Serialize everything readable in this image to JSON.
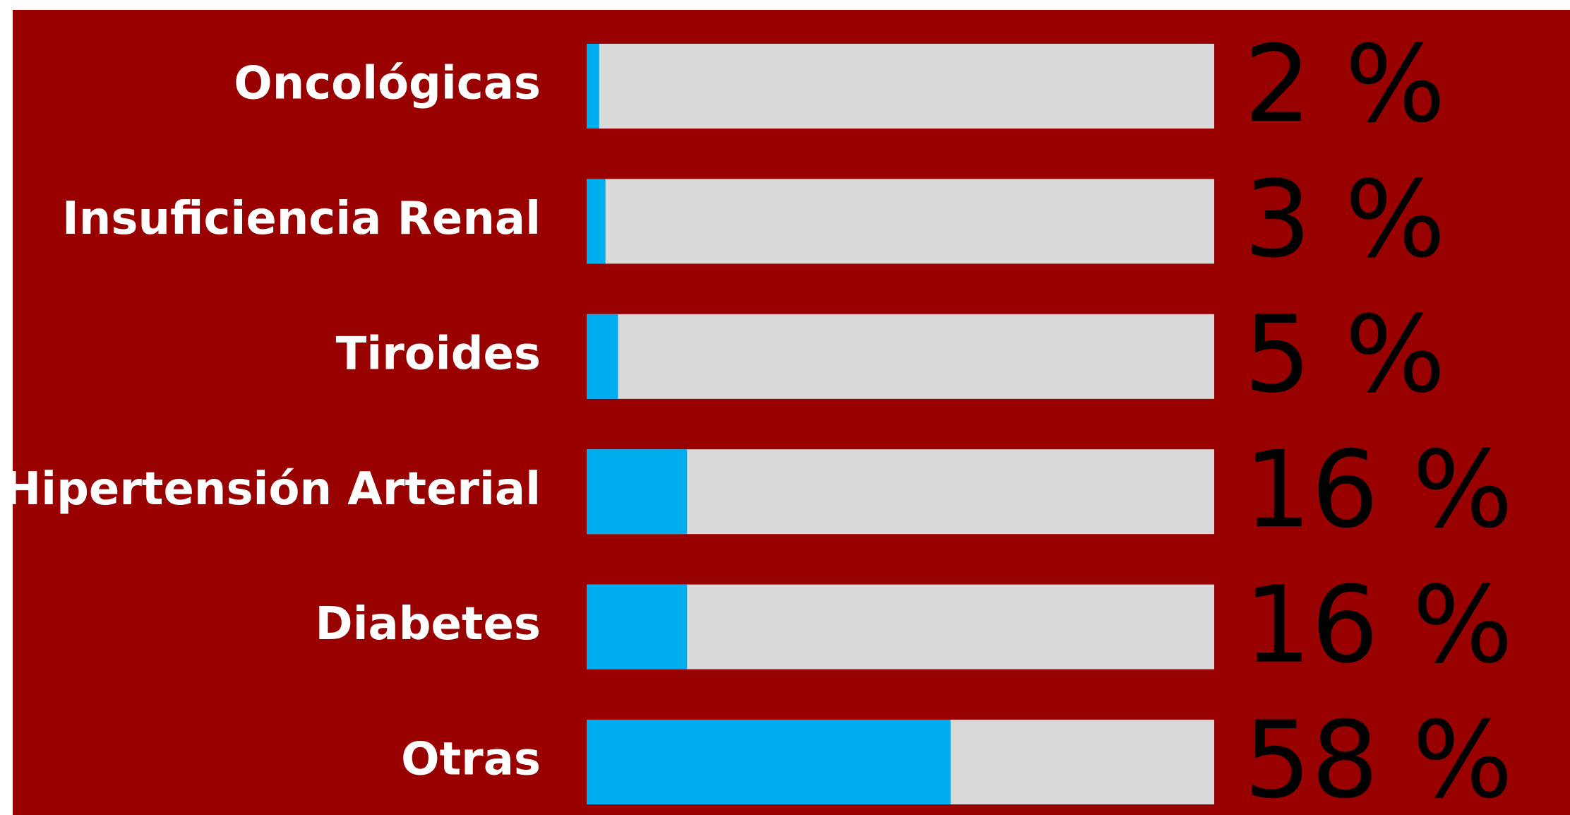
{
  "chart_data": {
    "type": "bar",
    "orientation": "horizontal",
    "categories": [
      "Oncológicas",
      "Insuficiencia Renal",
      "Tiroides",
      "Hipertensión Arterial",
      "Diabetes",
      "Otras"
    ],
    "values": [
      2,
      3,
      5,
      16,
      16,
      58
    ],
    "value_labels": [
      "2 %",
      "3 %",
      "5 %",
      "16 %",
      "16 %",
      "58 %"
    ],
    "xlim": [
      0,
      100
    ],
    "color": "#00adef",
    "track_color": "#d9d9d9",
    "background": "#990000"
  }
}
